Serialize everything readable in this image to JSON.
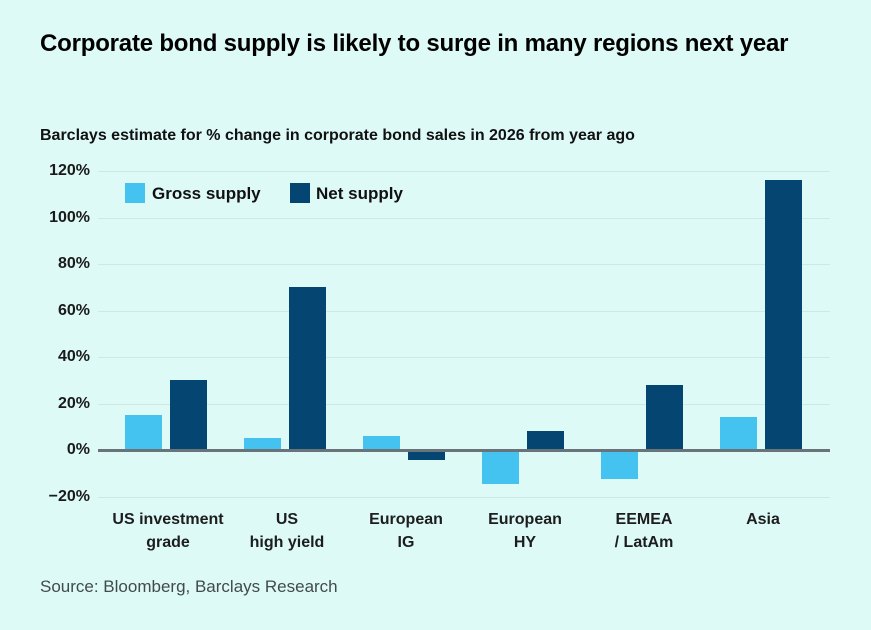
{
  "header": {
    "title": "Corporate bond supply is likely to surge in many regions next year",
    "subtitle": "Barclays estimate for % change in corporate bond sales in 2026 from year ago"
  },
  "chart_data": {
    "type": "bar",
    "title": "Corporate bond supply is likely to surge in many regions next year",
    "subtitle": "Barclays estimate for % change in corporate bond sales in 2026 from year ago",
    "categories": [
      "US investment grade",
      "US high yield",
      "European IG",
      "European HY",
      "EEMEA / LatAm",
      "Asia"
    ],
    "categories_lines": [
      [
        "US investment",
        "grade"
      ],
      [
        "US",
        "high yield"
      ],
      [
        "European",
        "IG"
      ],
      [
        "European",
        "HY"
      ],
      [
        "EEMEA",
        "/ LatAm"
      ],
      [
        "Asia"
      ]
    ],
    "series": [
      {
        "name": "Gross supply",
        "color": "#45c3f0",
        "values": [
          15,
          5,
          6,
          -14,
          -12,
          14
        ]
      },
      {
        "name": "Net supply",
        "color": "#054571",
        "values": [
          30,
          70,
          -4,
          8,
          28,
          116
        ]
      }
    ],
    "yticks": [
      120,
      100,
      80,
      60,
      40,
      20,
      0,
      -20
    ],
    "ytick_labels": [
      "120%",
      "100%",
      "80%",
      "60%",
      "40%",
      "20%",
      "0%",
      "−20%"
    ],
    "ylim": [
      -20,
      120
    ],
    "xlabel": "",
    "ylabel": "",
    "grid": true,
    "legend_position": "top-left-inside",
    "colors": {
      "background": "#ddfaf7",
      "gridline": "#cfe8e4",
      "zero_axis": "#68737a"
    }
  },
  "footer": {
    "source": "Source: Bloomberg, Barclays Research"
  }
}
